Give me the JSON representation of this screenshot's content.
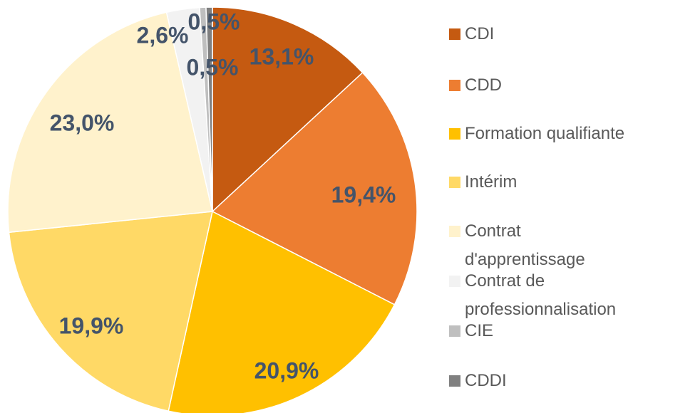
{
  "chart_data": {
    "type": "pie",
    "categories": [
      "CDI",
      "CDD",
      "Formation qualifiante",
      "Intérim",
      "Contrat d'apprentissage",
      "Contrat de professionnalisation",
      "CIE",
      "CDDI"
    ],
    "values": [
      13.1,
      19.4,
      20.9,
      19.9,
      23.0,
      2.6,
      0.5,
      0.5
    ],
    "value_labels": [
      "13,1%",
      "19,4%",
      "20,9%",
      "19,9%",
      "23,0%",
      "2,6%",
      "0,5%",
      "0,5%"
    ],
    "colors": [
      "#c55a11",
      "#ed7d31",
      "#ffc000",
      "#ffd966",
      "#fff2cc",
      "#f2f2f2",
      "#bfbfbf",
      "#808080"
    ],
    "legend": "right"
  }
}
